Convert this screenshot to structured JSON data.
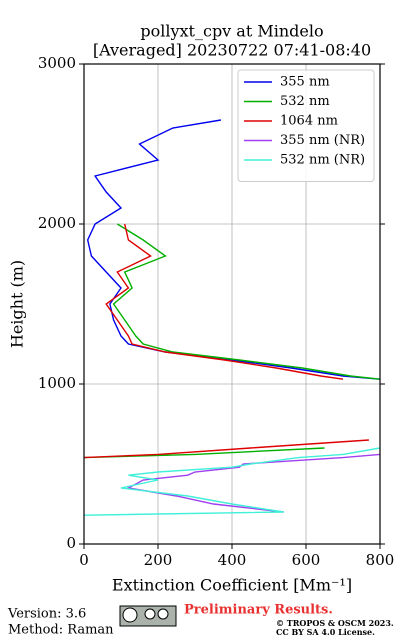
{
  "chart_data": {
    "type": "line",
    "title": "pollyxt_cpv at Mindelo",
    "subtitle": "[Averaged] 20230722 07:41-08:40",
    "xlabel": "Extinction Coefficient [Mm⁻¹]",
    "ylabel": "Height (m)",
    "xlim": [
      0,
      800
    ],
    "xticks": [
      0,
      200,
      400,
      600,
      800
    ],
    "ylim": [
      0,
      3000
    ],
    "yticks": [
      0,
      1000,
      2000,
      3000
    ],
    "grid": true,
    "legend": "upper right",
    "y": [
      180,
      200,
      250,
      300,
      350,
      400,
      430,
      450,
      480,
      500,
      540,
      560,
      600,
      650,
      700,
      1030,
      1050,
      1100,
      1150,
      1200,
      1250,
      1300,
      1400,
      1500,
      1600,
      1700,
      1800,
      1900,
      2000,
      2100,
      2200,
      2300,
      2400,
      2500,
      2600,
      2650
    ],
    "series": [
      {
        "name": "355 nm",
        "color": "#0000ee",
        "values": [
          null,
          null,
          null,
          null,
          null,
          null,
          null,
          null,
          null,
          null,
          null,
          null,
          null,
          null,
          null,
          800,
          700,
          560,
          400,
          220,
          120,
          100,
          80,
          70,
          100,
          60,
          20,
          10,
          30,
          100,
          60,
          30,
          200,
          150,
          240,
          370
        ]
      },
      {
        "name": "532 nm",
        "color": "#00b000",
        "values": [
          null,
          null,
          null,
          null,
          null,
          null,
          null,
          null,
          null,
          null,
          0,
          300,
          650,
          null,
          null,
          800,
          720,
          590,
          420,
          240,
          160,
          140,
          110,
          80,
          130,
          110,
          220,
          160,
          90,
          null,
          null,
          null,
          null,
          null,
          null,
          null
        ]
      },
      {
        "name": "1064 nm",
        "color": "#dd0000",
        "values": [
          null,
          null,
          null,
          null,
          null,
          null,
          null,
          null,
          null,
          null,
          0,
          200,
          450,
          770,
          null,
          700,
          640,
          520,
          380,
          220,
          130,
          120,
          90,
          60,
          120,
          90,
          180,
          120,
          110,
          null,
          null,
          null,
          null,
          null,
          null,
          null
        ]
      },
      {
        "name": "355 nm (NR)",
        "color": "#a040f0",
        "values": [
          null,
          540,
          350,
          250,
          120,
          160,
          280,
          300,
          420,
          430,
          700,
          800,
          null,
          null,
          null,
          null,
          null,
          null,
          null,
          null,
          null,
          null,
          null,
          null,
          null,
          null,
          null,
          null,
          null,
          null,
          null,
          null,
          null,
          null,
          null,
          null
        ]
      },
      {
        "name": "532 nm (NR)",
        "color": "#40f0d8",
        "values": [
          0,
          540,
          400,
          280,
          100,
          200,
          120,
          200,
          400,
          450,
          580,
          700,
          800,
          null,
          null,
          null,
          null,
          null,
          null,
          null,
          null,
          null,
          null,
          null,
          null,
          null,
          null,
          null,
          null,
          null,
          null,
          null,
          null,
          null,
          null,
          null
        ]
      }
    ]
  },
  "footer": {
    "version": "Version: 3.6",
    "method": "Method: Raman",
    "status": "Preliminary Results.",
    "copyright": "© TROPOS & OSCM 2023.",
    "license": "CC BY SA 4.0 License."
  }
}
